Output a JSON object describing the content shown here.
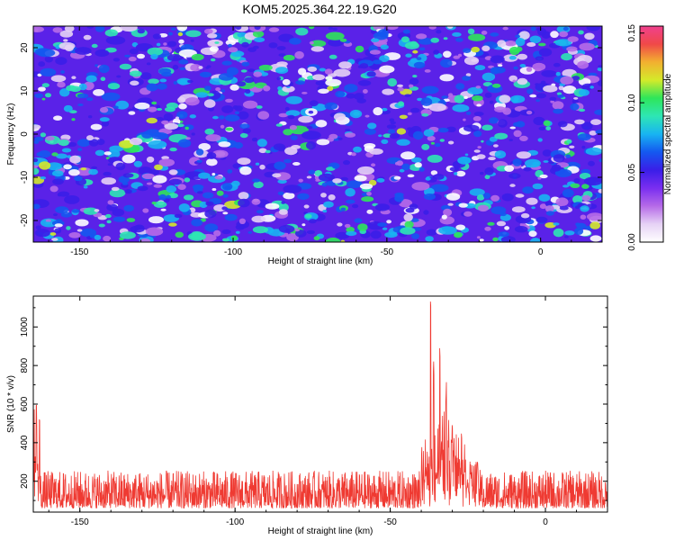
{
  "title": "KOM5.2025.364.22.19.G20",
  "colors": {
    "snr_line": "#ef3a32",
    "axis": "#000000",
    "colormap": [
      "#ffffff",
      "#e6d2f5",
      "#b66be8",
      "#7a2ef0",
      "#3a1ee8",
      "#1458f0",
      "#18b4f2",
      "#2ee6b4",
      "#2ee65a",
      "#d4ea2a",
      "#f2b030",
      "#f04848",
      "#f0408e"
    ]
  },
  "chart_data": [
    {
      "type": "heatmap",
      "title": "",
      "xlabel": "Height of straight line (km)",
      "ylabel": "Frequency (Hz)",
      "xlim": [
        -165,
        20
      ],
      "ylim": [
        -25,
        25
      ],
      "xticks": [
        -150,
        -100,
        -50,
        0
      ],
      "yticks": [
        -20,
        -10,
        0,
        10,
        20
      ],
      "colorbar": {
        "label": "Normalized spectral amplitude",
        "range": [
          0.0,
          0.155
        ],
        "ticks": [
          "0.00",
          "0.05",
          "0.10",
          "0.15"
        ]
      },
      "description_note": "Dense field of small blobs across the whole grid; mostly violet/blue values near 0.02-0.05 with scattered green-yellow peaks up to ~0.12"
    },
    {
      "type": "line",
      "title": "",
      "xlabel": "Height of straight line (km)",
      "ylabel": "SNR (10 * v/v)",
      "xlim": [
        -165,
        20
      ],
      "ylim": [
        40,
        1160
      ],
      "xticks": [
        -150,
        -100,
        -50,
        0
      ],
      "yticks": [
        200,
        400,
        600,
        800,
        1000
      ],
      "series": [
        {
          "baseline": 120,
          "noise_range": [
            60,
            320
          ],
          "peaks": [
            {
              "x": -164,
              "y": 640
            },
            {
              "x": -163,
              "y": 560
            },
            {
              "x": -37,
              "y": 1160
            },
            {
              "x": -36,
              "y": 860
            },
            {
              "x": -34,
              "y": 900
            },
            {
              "x": -32,
              "y": 720
            },
            {
              "x": -30,
              "y": 520
            },
            {
              "x": -27,
              "y": 460
            },
            {
              "x": -22,
              "y": 320
            }
          ]
        }
      ]
    }
  ]
}
